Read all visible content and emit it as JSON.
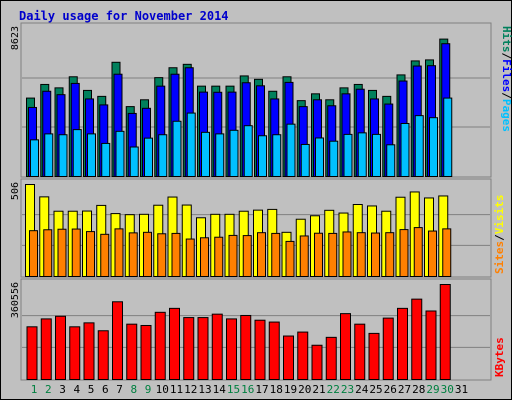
{
  "title": "Daily usage for November 2014",
  "colors": {
    "background": "#c0c0c0",
    "hits": "#00805c",
    "files": "#0000ff",
    "pages": "#00c0ff",
    "visits": "#ffff00",
    "sites": "#ff8000",
    "kbytes": "#ff0000",
    "title": "#0000cc",
    "weekend_day": "#008040",
    "weekday": "#000000"
  },
  "weekend_days": [
    1,
    2,
    8,
    9,
    15,
    16,
    22,
    23,
    29,
    30
  ],
  "chart_data": [
    {
      "type": "bar",
      "categories": [
        "1",
        "2",
        "3",
        "4",
        "5",
        "6",
        "7",
        "8",
        "9",
        "10",
        "11",
        "12",
        "13",
        "14",
        "15",
        "16",
        "17",
        "18",
        "19",
        "20",
        "21",
        "22",
        "23",
        "24",
        "25",
        "26",
        "27",
        "28",
        "29",
        "30",
        "31"
      ],
      "ymax_label": "8623",
      "ylim": [
        0,
        8623
      ],
      "series": [
        {
          "name": "Hits",
          "values": [
            4600,
            5400,
            5200,
            5850,
            5050,
            4700,
            6700,
            4100,
            4500,
            5800,
            6380,
            6580,
            5300,
            5300,
            5300,
            5900,
            5700,
            5000,
            5850,
            4450,
            4850,
            4500,
            5200,
            5400,
            5050,
            4700,
            5960,
            6780,
            6840,
            8060,
            0
          ]
        },
        {
          "name": "Files",
          "values": [
            4050,
            5000,
            4800,
            5460,
            4550,
            4200,
            6000,
            3700,
            4000,
            5300,
            6000,
            6380,
            4950,
            4940,
            4950,
            5500,
            5320,
            4550,
            5520,
            4100,
            4500,
            4150,
            4850,
            5120,
            4550,
            4250,
            5600,
            6480,
            6500,
            7790,
            0
          ]
        },
        {
          "name": "Pages",
          "values": [
            2150,
            2500,
            2450,
            2750,
            2500,
            1940,
            2650,
            1730,
            2250,
            2450,
            3240,
            3720,
            2590,
            2500,
            2710,
            2980,
            2390,
            2450,
            3070,
            1880,
            2260,
            2070,
            2470,
            2560,
            2470,
            1860,
            3110,
            3570,
            3450,
            4600,
            0
          ]
        }
      ]
    },
    {
      "type": "bar",
      "categories": [
        "1",
        "2",
        "3",
        "4",
        "5",
        "6",
        "7",
        "8",
        "9",
        "10",
        "11",
        "12",
        "13",
        "14",
        "15",
        "16",
        "17",
        "18",
        "19",
        "20",
        "21",
        "22",
        "23",
        "24",
        "25",
        "26",
        "27",
        "28",
        "29",
        "30",
        "31"
      ],
      "ymax_label": "506",
      "ylim": [
        0,
        506
      ],
      "series": [
        {
          "name": "Visits",
          "values": [
            506,
            438,
            359,
            359,
            360,
            391,
            346,
            340,
            342,
            392,
            437,
            393,
            323,
            342,
            342,
            359,
            365,
            369,
            243,
            315,
            334,
            364,
            349,
            396,
            388,
            359,
            436,
            465,
            432,
            443,
            0
          ]
        },
        {
          "name": "Sites",
          "values": [
            252,
            257,
            260,
            261,
            247,
            232,
            262,
            240,
            243,
            235,
            237,
            206,
            213,
            216,
            226,
            225,
            241,
            237,
            193,
            223,
            238,
            237,
            245,
            241,
            239,
            241,
            258,
            269,
            250,
            262,
            0
          ]
        }
      ]
    },
    {
      "type": "bar",
      "categories": [
        "1",
        "2",
        "3",
        "4",
        "5",
        "6",
        "7",
        "8",
        "9",
        "10",
        "11",
        "12",
        "13",
        "14",
        "15",
        "16",
        "17",
        "18",
        "19",
        "20",
        "21",
        "22",
        "23",
        "24",
        "25",
        "26",
        "27",
        "28",
        "29",
        "30",
        "31"
      ],
      "ymax_label": "360556",
      "ylim": [
        0,
        360556
      ],
      "series": [
        {
          "name": "KBytes",
          "values": [
            200000,
            230000,
            240000,
            200000,
            215000,
            185000,
            295000,
            210000,
            205000,
            255000,
            270000,
            235000,
            235000,
            248000,
            230000,
            243000,
            225000,
            218000,
            165000,
            180000,
            130000,
            160000,
            250000,
            210000,
            175000,
            233000,
            270000,
            305000,
            260000,
            360556,
            0
          ]
        }
      ]
    }
  ]
}
